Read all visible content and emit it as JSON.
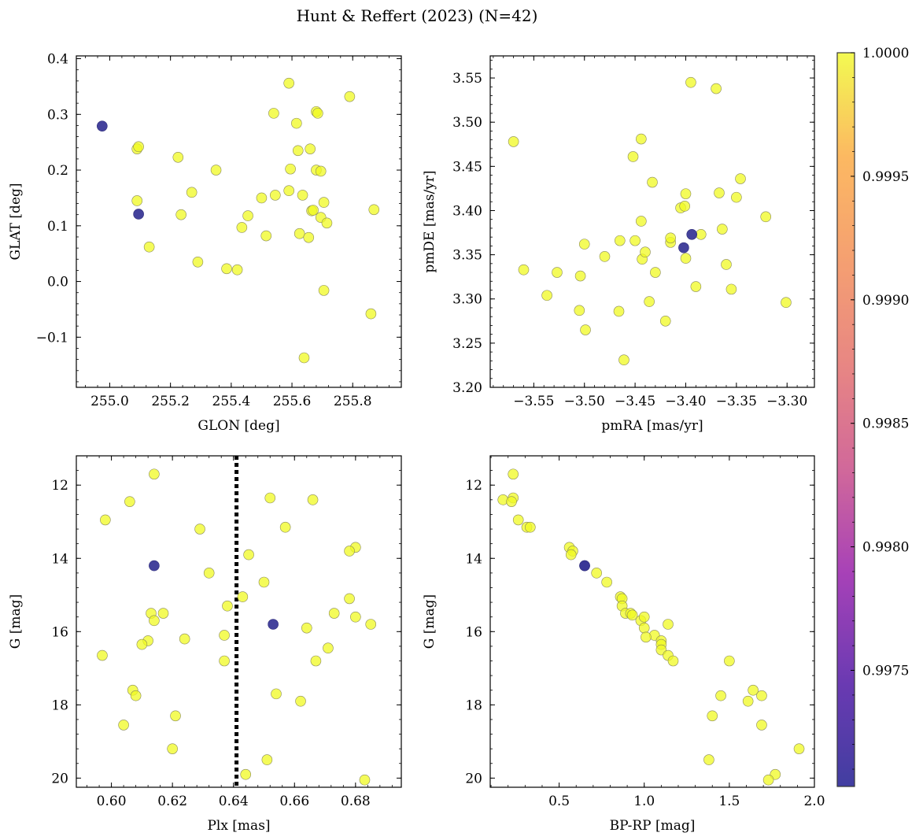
{
  "figure": {
    "title": "Hunt & Reffert (2023) (N=42)"
  },
  "colorbar": {
    "cmap": "plasma",
    "range": [
      0.99703,
      1.0
    ],
    "ticks": [
      0.9975,
      0.998,
      0.9985,
      0.999,
      0.9995,
      1.0
    ],
    "tick_labels": [
      "0.9975",
      "0.9980",
      "0.9985",
      "0.9990",
      "0.9995",
      "1.0000"
    ]
  },
  "colors": {
    "member_high": "#f0f921",
    "member_low": "#3a3897",
    "line": "#000000"
  },
  "chart_data": [
    {
      "type": "scatter",
      "xlabel": "GLON [deg]",
      "ylabel": "GLAT [deg]",
      "xlim": [
        254.89,
        255.96
      ],
      "ylim": [
        -0.19,
        0.405
      ],
      "xticks": [
        255.0,
        255.2,
        255.4,
        255.6,
        255.8
      ],
      "xtick_labels": [
        "255.0",
        "255.2",
        "255.4",
        "255.6",
        "255.8"
      ],
      "yticks": [
        -0.1,
        0.0,
        0.1,
        0.2,
        0.3,
        0.4
      ],
      "ytick_labels": [
        "−0.1",
        "0.0",
        "0.1",
        "0.2",
        "0.3",
        "0.4"
      ],
      "points": [
        {
          "x": 255.09,
          "y": 0.238,
          "p": 1.0
        },
        {
          "x": 255.095,
          "y": 0.242,
          "p": 1.0
        },
        {
          "x": 255.09,
          "y": 0.145,
          "p": 1.0
        },
        {
          "x": 255.13,
          "y": 0.062,
          "p": 1.0
        },
        {
          "x": 255.225,
          "y": 0.223,
          "p": 1.0
        },
        {
          "x": 255.235,
          "y": 0.12,
          "p": 1.0
        },
        {
          "x": 255.27,
          "y": 0.16,
          "p": 1.0
        },
        {
          "x": 255.29,
          "y": 0.035,
          "p": 1.0
        },
        {
          "x": 255.35,
          "y": 0.2,
          "p": 1.0
        },
        {
          "x": 255.385,
          "y": 0.023,
          "p": 1.0
        },
        {
          "x": 255.42,
          "y": 0.021,
          "p": 1.0
        },
        {
          "x": 255.435,
          "y": 0.097,
          "p": 1.0
        },
        {
          "x": 255.455,
          "y": 0.118,
          "p": 1.0
        },
        {
          "x": 255.5,
          "y": 0.15,
          "p": 1.0
        },
        {
          "x": 255.515,
          "y": 0.082,
          "p": 1.0
        },
        {
          "x": 255.54,
          "y": 0.302,
          "p": 1.0
        },
        {
          "x": 255.545,
          "y": 0.155,
          "p": 1.0
        },
        {
          "x": 255.59,
          "y": 0.356,
          "p": 1.0
        },
        {
          "x": 255.59,
          "y": 0.163,
          "p": 1.0
        },
        {
          "x": 255.595,
          "y": 0.202,
          "p": 1.0
        },
        {
          "x": 255.615,
          "y": 0.284,
          "p": 1.0
        },
        {
          "x": 255.62,
          "y": 0.235,
          "p": 1.0
        },
        {
          "x": 255.625,
          "y": 0.086,
          "p": 1.0
        },
        {
          "x": 255.635,
          "y": 0.155,
          "p": 1.0
        },
        {
          "x": 255.64,
          "y": -0.137,
          "p": 1.0
        },
        {
          "x": 255.655,
          "y": 0.079,
          "p": 1.0
        },
        {
          "x": 255.66,
          "y": 0.238,
          "p": 1.0
        },
        {
          "x": 255.665,
          "y": 0.127,
          "p": 1.0
        },
        {
          "x": 255.67,
          "y": 0.128,
          "p": 1.0
        },
        {
          "x": 255.68,
          "y": 0.305,
          "p": 1.0
        },
        {
          "x": 255.685,
          "y": 0.302,
          "p": 1.0
        },
        {
          "x": 255.68,
          "y": 0.2,
          "p": 1.0
        },
        {
          "x": 255.695,
          "y": 0.198,
          "p": 1.0
        },
        {
          "x": 255.695,
          "y": 0.115,
          "p": 1.0
        },
        {
          "x": 255.705,
          "y": 0.142,
          "p": 1.0
        },
        {
          "x": 255.705,
          "y": -0.016,
          "p": 1.0
        },
        {
          "x": 255.715,
          "y": 0.105,
          "p": 1.0
        },
        {
          "x": 255.79,
          "y": 0.332,
          "p": 1.0
        },
        {
          "x": 255.86,
          "y": -0.058,
          "p": 1.0
        },
        {
          "x": 255.87,
          "y": 0.129,
          "p": 1.0
        },
        {
          "x": 254.975,
          "y": 0.279,
          "p": 0.99703
        },
        {
          "x": 255.095,
          "y": 0.121,
          "p": 0.99703
        }
      ]
    },
    {
      "type": "scatter",
      "xlabel": "pmRA [mas/yr]",
      "ylabel": "pmDE [mas/yr]",
      "xlim": [
        -3.593,
        -3.273
      ],
      "ylim": [
        3.2,
        3.575
      ],
      "xticks": [
        -3.55,
        -3.5,
        -3.45,
        -3.4,
        -3.35,
        -3.3
      ],
      "xtick_labels": [
        "−3.55",
        "−3.50",
        "−3.45",
        "−3.40",
        "−3.35",
        "−3.30"
      ],
      "yticks": [
        3.2,
        3.25,
        3.3,
        3.35,
        3.4,
        3.45,
        3.5,
        3.55
      ],
      "ytick_labels": [
        "3.20",
        "3.25",
        "3.30",
        "3.35",
        "3.40",
        "3.45",
        "3.50",
        "3.55"
      ],
      "points": [
        {
          "x": -3.57,
          "y": 3.478,
          "p": 1.0
        },
        {
          "x": -3.56,
          "y": 3.333,
          "p": 1.0
        },
        {
          "x": -3.537,
          "y": 3.304,
          "p": 1.0
        },
        {
          "x": -3.527,
          "y": 3.33,
          "p": 1.0
        },
        {
          "x": -3.505,
          "y": 3.287,
          "p": 1.0
        },
        {
          "x": -3.504,
          "y": 3.326,
          "p": 1.0
        },
        {
          "x": -3.5,
          "y": 3.362,
          "p": 1.0
        },
        {
          "x": -3.499,
          "y": 3.265,
          "p": 1.0
        },
        {
          "x": -3.48,
          "y": 3.348,
          "p": 1.0
        },
        {
          "x": -3.466,
          "y": 3.286,
          "p": 1.0
        },
        {
          "x": -3.465,
          "y": 3.366,
          "p": 1.0
        },
        {
          "x": -3.461,
          "y": 3.231,
          "p": 1.0
        },
        {
          "x": -3.452,
          "y": 3.461,
          "p": 1.0
        },
        {
          "x": -3.45,
          "y": 3.366,
          "p": 1.0
        },
        {
          "x": -3.444,
          "y": 3.481,
          "p": 1.0
        },
        {
          "x": -3.444,
          "y": 3.388,
          "p": 1.0
        },
        {
          "x": -3.443,
          "y": 3.345,
          "p": 1.0
        },
        {
          "x": -3.44,
          "y": 3.353,
          "p": 1.0
        },
        {
          "x": -3.436,
          "y": 3.297,
          "p": 1.0
        },
        {
          "x": -3.433,
          "y": 3.432,
          "p": 1.0
        },
        {
          "x": -3.43,
          "y": 3.33,
          "p": 1.0
        },
        {
          "x": -3.42,
          "y": 3.275,
          "p": 1.0
        },
        {
          "x": -3.415,
          "y": 3.364,
          "p": 1.0
        },
        {
          "x": -3.415,
          "y": 3.369,
          "p": 1.0
        },
        {
          "x": -3.405,
          "y": 3.403,
          "p": 1.0
        },
        {
          "x": -3.401,
          "y": 3.405,
          "p": 1.0
        },
        {
          "x": -3.4,
          "y": 3.419,
          "p": 1.0
        },
        {
          "x": -3.4,
          "y": 3.346,
          "p": 1.0
        },
        {
          "x": -3.395,
          "y": 3.545,
          "p": 1.0
        },
        {
          "x": -3.39,
          "y": 3.314,
          "p": 1.0
        },
        {
          "x": -3.385,
          "y": 3.373,
          "p": 1.0
        },
        {
          "x": -3.37,
          "y": 3.538,
          "p": 1.0
        },
        {
          "x": -3.367,
          "y": 3.42,
          "p": 1.0
        },
        {
          "x": -3.364,
          "y": 3.379,
          "p": 1.0
        },
        {
          "x": -3.36,
          "y": 3.339,
          "p": 1.0
        },
        {
          "x": -3.355,
          "y": 3.311,
          "p": 1.0
        },
        {
          "x": -3.35,
          "y": 3.415,
          "p": 1.0
        },
        {
          "x": -3.346,
          "y": 3.436,
          "p": 1.0
        },
        {
          "x": -3.321,
          "y": 3.393,
          "p": 1.0
        },
        {
          "x": -3.301,
          "y": 3.296,
          "p": 1.0
        },
        {
          "x": -3.402,
          "y": 3.358,
          "p": 0.99703
        },
        {
          "x": -3.394,
          "y": 3.373,
          "p": 0.99703
        }
      ]
    },
    {
      "type": "scatter",
      "xlabel": "Plx [mas]",
      "ylabel": "G [mag]",
      "xlim": [
        0.5885,
        0.695
      ],
      "ylim": [
        20.25,
        11.2
      ],
      "y_inverted": true,
      "vline": {
        "x": 0.641,
        "style": "dotted"
      },
      "xticks": [
        0.6,
        0.62,
        0.64,
        0.66,
        0.68
      ],
      "xtick_labels": [
        "0.60",
        "0.62",
        "0.64",
        "0.66",
        "0.68"
      ],
      "yticks": [
        12,
        14,
        16,
        18,
        20
      ],
      "ytick_labels": [
        "12",
        "14",
        "16",
        "18",
        "20"
      ],
      "points": [
        {
          "x": 0.614,
          "y": 11.7,
          "p": 1.0
        },
        {
          "x": 0.652,
          "y": 12.35,
          "p": 1.0
        },
        {
          "x": 0.666,
          "y": 12.4,
          "p": 1.0
        },
        {
          "x": 0.606,
          "y": 12.45,
          "p": 1.0
        },
        {
          "x": 0.598,
          "y": 12.95,
          "p": 1.0
        },
        {
          "x": 0.657,
          "y": 13.15,
          "p": 1.0
        },
        {
          "x": 0.629,
          "y": 13.2,
          "p": 1.0
        },
        {
          "x": 0.68,
          "y": 13.7,
          "p": 1.0
        },
        {
          "x": 0.678,
          "y": 13.8,
          "p": 1.0
        },
        {
          "x": 0.645,
          "y": 13.9,
          "p": 1.0
        },
        {
          "x": 0.632,
          "y": 14.4,
          "p": 1.0
        },
        {
          "x": 0.65,
          "y": 14.65,
          "p": 1.0
        },
        {
          "x": 0.643,
          "y": 15.05,
          "p": 1.0
        },
        {
          "x": 0.678,
          "y": 15.1,
          "p": 1.0
        },
        {
          "x": 0.638,
          "y": 15.3,
          "p": 1.0
        },
        {
          "x": 0.613,
          "y": 15.5,
          "p": 1.0
        },
        {
          "x": 0.617,
          "y": 15.5,
          "p": 1.0
        },
        {
          "x": 0.673,
          "y": 15.5,
          "p": 1.0
        },
        {
          "x": 0.68,
          "y": 15.6,
          "p": 1.0
        },
        {
          "x": 0.614,
          "y": 15.7,
          "p": 1.0
        },
        {
          "x": 0.685,
          "y": 15.8,
          "p": 1.0
        },
        {
          "x": 0.664,
          "y": 15.9,
          "p": 1.0
        },
        {
          "x": 0.637,
          "y": 16.1,
          "p": 1.0
        },
        {
          "x": 0.624,
          "y": 16.2,
          "p": 1.0
        },
        {
          "x": 0.612,
          "y": 16.25,
          "p": 1.0
        },
        {
          "x": 0.61,
          "y": 16.35,
          "p": 1.0
        },
        {
          "x": 0.671,
          "y": 16.45,
          "p": 1.0
        },
        {
          "x": 0.597,
          "y": 16.65,
          "p": 1.0
        },
        {
          "x": 0.637,
          "y": 16.8,
          "p": 1.0
        },
        {
          "x": 0.667,
          "y": 16.8,
          "p": 1.0
        },
        {
          "x": 0.607,
          "y": 17.6,
          "p": 1.0
        },
        {
          "x": 0.608,
          "y": 17.75,
          "p": 1.0
        },
        {
          "x": 0.654,
          "y": 17.7,
          "p": 1.0
        },
        {
          "x": 0.662,
          "y": 17.9,
          "p": 1.0
        },
        {
          "x": 0.621,
          "y": 18.3,
          "p": 1.0
        },
        {
          "x": 0.604,
          "y": 18.55,
          "p": 1.0
        },
        {
          "x": 0.62,
          "y": 19.2,
          "p": 1.0
        },
        {
          "x": 0.651,
          "y": 19.5,
          "p": 1.0
        },
        {
          "x": 0.644,
          "y": 19.9,
          "p": 1.0
        },
        {
          "x": 0.683,
          "y": 20.05,
          "p": 1.0
        },
        {
          "x": 0.614,
          "y": 14.2,
          "p": 0.99703
        },
        {
          "x": 0.653,
          "y": 15.8,
          "p": 0.99703
        }
      ]
    },
    {
      "type": "scatter",
      "xlabel": "BP-RP [mag]",
      "ylabel": "G [mag]",
      "xlim": [
        0.095,
        2.0
      ],
      "ylim": [
        20.25,
        11.2
      ],
      "y_inverted": true,
      "xticks": [
        0.5,
        1.0,
        1.5,
        2.0
      ],
      "xtick_labels": [
        "0.5",
        "1.0",
        "1.5",
        "2.0"
      ],
      "yticks": [
        12,
        14,
        16,
        18,
        20
      ],
      "ytick_labels": [
        "12",
        "14",
        "16",
        "18",
        "20"
      ],
      "points": [
        {
          "x": 0.23,
          "y": 11.7,
          "p": 1.0
        },
        {
          "x": 0.23,
          "y": 12.35,
          "p": 1.0
        },
        {
          "x": 0.17,
          "y": 12.4,
          "p": 1.0
        },
        {
          "x": 0.22,
          "y": 12.45,
          "p": 1.0
        },
        {
          "x": 0.26,
          "y": 12.95,
          "p": 1.0
        },
        {
          "x": 0.31,
          "y": 13.15,
          "p": 1.0
        },
        {
          "x": 0.33,
          "y": 13.15,
          "p": 1.0
        },
        {
          "x": 0.56,
          "y": 13.7,
          "p": 1.0
        },
        {
          "x": 0.58,
          "y": 13.8,
          "p": 1.0
        },
        {
          "x": 0.57,
          "y": 13.9,
          "p": 1.0
        },
        {
          "x": 0.72,
          "y": 14.4,
          "p": 1.0
        },
        {
          "x": 0.78,
          "y": 14.65,
          "p": 1.0
        },
        {
          "x": 0.86,
          "y": 15.05,
          "p": 1.0
        },
        {
          "x": 0.87,
          "y": 15.1,
          "p": 1.0
        },
        {
          "x": 0.87,
          "y": 15.3,
          "p": 1.0
        },
        {
          "x": 0.89,
          "y": 15.5,
          "p": 1.0
        },
        {
          "x": 0.92,
          "y": 15.5,
          "p": 1.0
        },
        {
          "x": 0.93,
          "y": 15.55,
          "p": 1.0
        },
        {
          "x": 0.98,
          "y": 15.7,
          "p": 1.0
        },
        {
          "x": 1.0,
          "y": 15.6,
          "p": 1.0
        },
        {
          "x": 1.14,
          "y": 15.8,
          "p": 1.0
        },
        {
          "x": 1.0,
          "y": 15.9,
          "p": 1.0
        },
        {
          "x": 1.06,
          "y": 16.1,
          "p": 1.0
        },
        {
          "x": 1.01,
          "y": 16.15,
          "p": 1.0
        },
        {
          "x": 1.1,
          "y": 16.25,
          "p": 1.0
        },
        {
          "x": 1.1,
          "y": 16.35,
          "p": 1.0
        },
        {
          "x": 1.1,
          "y": 16.5,
          "p": 1.0
        },
        {
          "x": 1.14,
          "y": 16.65,
          "p": 1.0
        },
        {
          "x": 1.17,
          "y": 16.8,
          "p": 1.0
        },
        {
          "x": 1.5,
          "y": 16.8,
          "p": 1.0
        },
        {
          "x": 1.64,
          "y": 17.6,
          "p": 1.0
        },
        {
          "x": 1.45,
          "y": 17.75,
          "p": 1.0
        },
        {
          "x": 1.69,
          "y": 17.75,
          "p": 1.0
        },
        {
          "x": 1.61,
          "y": 17.9,
          "p": 1.0
        },
        {
          "x": 1.4,
          "y": 18.3,
          "p": 1.0
        },
        {
          "x": 1.69,
          "y": 18.55,
          "p": 1.0
        },
        {
          "x": 1.91,
          "y": 19.2,
          "p": 1.0
        },
        {
          "x": 1.38,
          "y": 19.5,
          "p": 1.0
        },
        {
          "x": 1.77,
          "y": 19.9,
          "p": 1.0
        },
        {
          "x": 1.73,
          "y": 20.05,
          "p": 1.0
        },
        {
          "x": 0.65,
          "y": 14.2,
          "p": 0.99703
        },
        {
          "x": 0.65,
          "y": 14.2,
          "p": 0.99703
        }
      ]
    }
  ]
}
